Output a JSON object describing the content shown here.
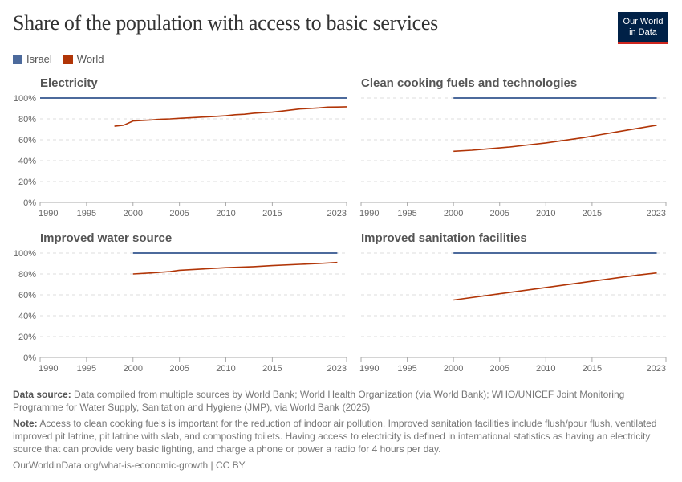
{
  "title": "Share of the population with access to basic services",
  "logo": {
    "line1": "Our World",
    "line2": "in Data"
  },
  "legend": [
    {
      "name": "Israel",
      "color": "#4C6A9C"
    },
    {
      "name": "World",
      "color": "#B13507"
    }
  ],
  "chart_data": [
    {
      "type": "line",
      "title": "Electricity",
      "xlim": [
        1990,
        2023
      ],
      "ylim": [
        0,
        100
      ],
      "xticks": [
        "1990",
        "1995",
        "2000",
        "2005",
        "2010",
        "2015",
        "2023"
      ],
      "yticks": [
        "0%",
        "20%",
        "40%",
        "60%",
        "80%",
        "100%"
      ],
      "grid": true,
      "series": [
        {
          "name": "Israel",
          "x": [
            1990,
            2023
          ],
          "y": [
            100,
            100
          ]
        },
        {
          "name": "World",
          "x": [
            1998,
            1999,
            2000,
            2001,
            2002,
            2003,
            2004,
            2005,
            2006,
            2007,
            2008,
            2009,
            2010,
            2011,
            2012,
            2013,
            2014,
            2015,
            2016,
            2017,
            2018,
            2019,
            2020,
            2021,
            2022,
            2023
          ],
          "y": [
            73,
            74,
            78,
            78.5,
            79,
            79.7,
            80,
            80.5,
            81,
            81.5,
            82,
            82.5,
            83,
            84,
            84.5,
            85.5,
            86,
            86.5,
            87.5,
            88.5,
            89.5,
            90,
            90.5,
            91.3,
            91.4,
            91.6
          ]
        }
      ]
    },
    {
      "type": "line",
      "title": "Clean cooking fuels and technologies",
      "xlim": [
        1990,
        2023
      ],
      "ylim": [
        0,
        100
      ],
      "xticks": [
        "1990",
        "1995",
        "2000",
        "2005",
        "2010",
        "2015",
        "2023"
      ],
      "yticks": [],
      "grid": true,
      "series": [
        {
          "name": "Israel",
          "x": [
            2000,
            2022
          ],
          "y": [
            100,
            100
          ]
        },
        {
          "name": "World",
          "x": [
            2000,
            2002,
            2004,
            2006,
            2008,
            2010,
            2012,
            2014,
            2016,
            2018,
            2020,
            2022
          ],
          "y": [
            49,
            50,
            51.5,
            53,
            55,
            57,
            59.5,
            62,
            65,
            68,
            71,
            74
          ]
        }
      ]
    },
    {
      "type": "line",
      "title": "Improved water source",
      "xlim": [
        1990,
        2023
      ],
      "ylim": [
        0,
        100
      ],
      "xticks": [
        "1990",
        "1995",
        "2000",
        "2005",
        "2010",
        "2015",
        "2023"
      ],
      "yticks": [
        "0%",
        "20%",
        "40%",
        "60%",
        "80%",
        "100%"
      ],
      "grid": true,
      "series": [
        {
          "name": "Israel",
          "x": [
            2000,
            2022
          ],
          "y": [
            100,
            100
          ]
        },
        {
          "name": "World",
          "x": [
            2000,
            2002,
            2004,
            2005,
            2008,
            2010,
            2013,
            2015,
            2018,
            2020,
            2022
          ],
          "y": [
            80,
            81,
            82.3,
            83.5,
            85,
            86,
            87,
            88,
            89.2,
            90,
            91
          ]
        }
      ]
    },
    {
      "type": "line",
      "title": "Improved sanitation facilities",
      "xlim": [
        1990,
        2023
      ],
      "ylim": [
        0,
        100
      ],
      "xticks": [
        "1990",
        "1995",
        "2000",
        "2005",
        "2010",
        "2015",
        "2023"
      ],
      "yticks": [],
      "grid": true,
      "series": [
        {
          "name": "Israel",
          "x": [
            2000,
            2022
          ],
          "y": [
            100,
            100
          ]
        },
        {
          "name": "World",
          "x": [
            2000,
            2005,
            2010,
            2015,
            2020,
            2022
          ],
          "y": [
            55,
            61,
            67,
            73,
            79,
            81
          ]
        }
      ]
    }
  ],
  "footer": {
    "source_label": "Data source:",
    "source_text": "Data compiled from multiple sources by World Bank; World Health Organization (via World Bank); WHO/UNICEF Joint Monitoring Programme for Water Supply, Sanitation and Hygiene (JMP), via World Bank (2025)",
    "note_label": "Note:",
    "note_text": "Access to clean cooking fuels is important for the reduction of indoor air pollution. Improved sanitation facilities include flush/pour flush, ventilated improved pit latrine, pit latrine with slab, and composting toilets. Having access to electricity is defined in international statistics as having an electricity source that can provide very basic lighting, and charge a phone or power a radio for 4 hours per day.",
    "url": "OurWorldinData.org/what-is-economic-growth | CC BY"
  }
}
